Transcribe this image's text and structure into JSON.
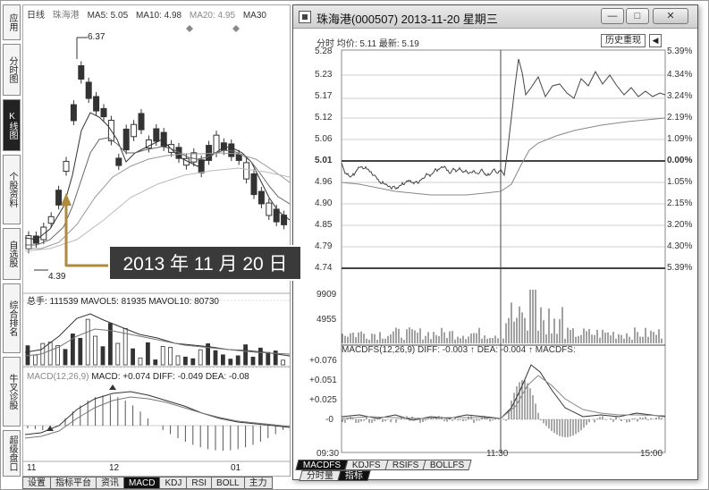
{
  "side_tabs": [
    {
      "label": "应用",
      "active": false
    },
    {
      "label": "分时图",
      "active": false
    },
    {
      "label": "K线图",
      "active": true
    },
    {
      "label": "个股资料",
      "active": false
    },
    {
      "label": "自选股",
      "active": false
    },
    {
      "label": "综合排名",
      "active": false
    },
    {
      "label": "牛叉诊股",
      "active": false
    },
    {
      "label": "超级盘口",
      "active": false
    }
  ],
  "left_chart": {
    "header": {
      "name": "日线",
      "stock": "珠海港",
      "ma5": "MA5: 5.05",
      "ma10": "MA10: 4.98",
      "ma20": "MA20: 4.95",
      "ma30": "MA30"
    },
    "high_label": "6.37",
    "low_label": "4.39",
    "volume_header": {
      "total": "总手: 111539",
      "mavol5": "MAVOL5: 81935",
      "mavol10": "MAVOL10: 80730"
    },
    "macd_header": {
      "name": "MACD(12,26,9)",
      "macd": "MACD: +0.074",
      "diff": "DIFF: -0.049",
      "dea": "DEA: -0.08"
    },
    "x_labels": [
      "11",
      "12",
      "01"
    ]
  },
  "annotation": "2013 年 11 月 20 日",
  "bottom_tabs": [
    {
      "label": "设置",
      "active": false
    },
    {
      "label": "指标平台",
      "active": false
    },
    {
      "label": "资讯",
      "active": false
    },
    {
      "label": "MACD",
      "active": true
    },
    {
      "label": "KDJ",
      "active": false
    },
    {
      "label": "RSI",
      "active": false
    },
    {
      "label": "BOLL",
      "active": false
    },
    {
      "label": "主力",
      "active": false
    }
  ],
  "window": {
    "title": "珠海港(000507) 2013-11-20 星期三",
    "head": {
      "label": "分时",
      "avg": "均价: 5.11",
      "latest": "最新: 5.19"
    },
    "history_button": "历史重现",
    "back_icon": "back-arrow-icon",
    "price_labels_left": [
      "5.28",
      "5.23",
      "5.17",
      "5.12",
      "5.06",
      "5.01",
      "4.96",
      "4.90",
      "4.85",
      "4.79",
      "4.74"
    ],
    "pct_labels_right": [
      "5.39%",
      "4.34%",
      "3.24%",
      "2.19%",
      "1.09%",
      "0.00%",
      "1.05%",
      "2.15%",
      "3.20%",
      "4.30%",
      "5.39%"
    ],
    "volume_labels": [
      "9909",
      "4955"
    ],
    "macd_header": "MACDFS(12,26,9)  DIFF: -0.003 ↑  DEA: -0.004 ↑  MACDFS:",
    "macd_labels": [
      "+0.076",
      "+0.051",
      "+0.025",
      "-0"
    ],
    "time_labels": [
      "09:30",
      "11:30",
      "15:00"
    ],
    "tabs": [
      {
        "label": "MACDFS",
        "active": true
      },
      {
        "label": "KDJFS",
        "active": false
      },
      {
        "label": "RSIFS",
        "active": false
      },
      {
        "label": "BOLLFS",
        "active": false
      }
    ],
    "tabs2": [
      {
        "label": "分时量",
        "active": false
      },
      {
        "label": "指标",
        "active": true
      }
    ]
  },
  "colors": {
    "bg": "#ffffff",
    "line": "#333333",
    "active_tab": "#111111",
    "annotation_bg": "#3a3a3a"
  }
}
